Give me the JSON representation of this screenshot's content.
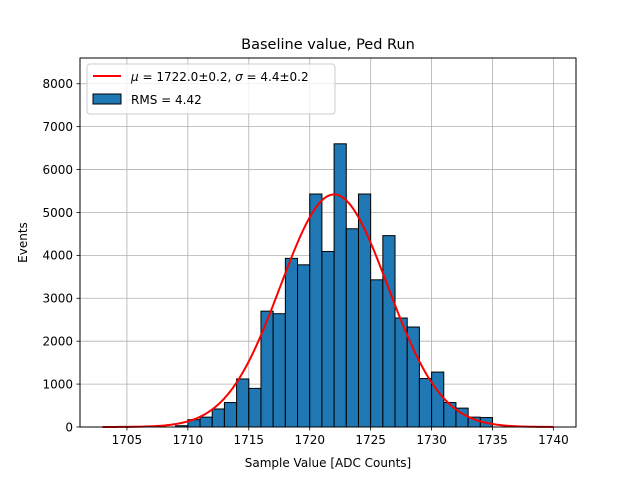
{
  "chart_data": {
    "type": "bar",
    "title": "Baseline value, Ped Run",
    "xlabel": "Sample Value [ADC Counts]",
    "ylabel": "Events",
    "xlim": [
      1701.15,
      1741.85
    ],
    "ylim": [
      0,
      8600
    ],
    "grid": true,
    "legend_position": "top-left",
    "x_ticks": [
      1705,
      1710,
      1715,
      1720,
      1725,
      1730,
      1735,
      1740
    ],
    "y_ticks": [
      0,
      1000,
      2000,
      3000,
      4000,
      5000,
      6000,
      7000,
      8000
    ],
    "bin_edges": [
      1709,
      1710,
      1711,
      1712,
      1713,
      1714,
      1715,
      1716,
      1717,
      1718,
      1719,
      1720,
      1721,
      1722,
      1723,
      1724,
      1725,
      1726,
      1727,
      1728,
      1729,
      1730,
      1731,
      1732,
      1733,
      1734,
      1735
    ],
    "counts": [
      30,
      170,
      230,
      420,
      570,
      1120,
      900,
      2700,
      2640,
      3930,
      3780,
      5430,
      4090,
      6600,
      4620,
      5430,
      3430,
      4460,
      2540,
      2330,
      1130,
      1280,
      570,
      440,
      230,
      220
    ],
    "bar_color": "#1f77b4",
    "fit": {
      "type": "gaussian",
      "mu": 1722.0,
      "sigma": 4.4,
      "amplitude": 5420,
      "x_range": [
        1703,
        1740
      ],
      "color": "#ff0000"
    },
    "legend": [
      {
        "mu_symbol": "μ",
        "mu_text": " = 1722.0±0.2, ",
        "sigma_symbol": "σ",
        "sigma_text": " = 4.4±0.2",
        "kind": "line",
        "color": "#ff0000"
      },
      {
        "text": "RMS = 4.42",
        "kind": "patch",
        "color": "#1f77b4"
      }
    ]
  }
}
